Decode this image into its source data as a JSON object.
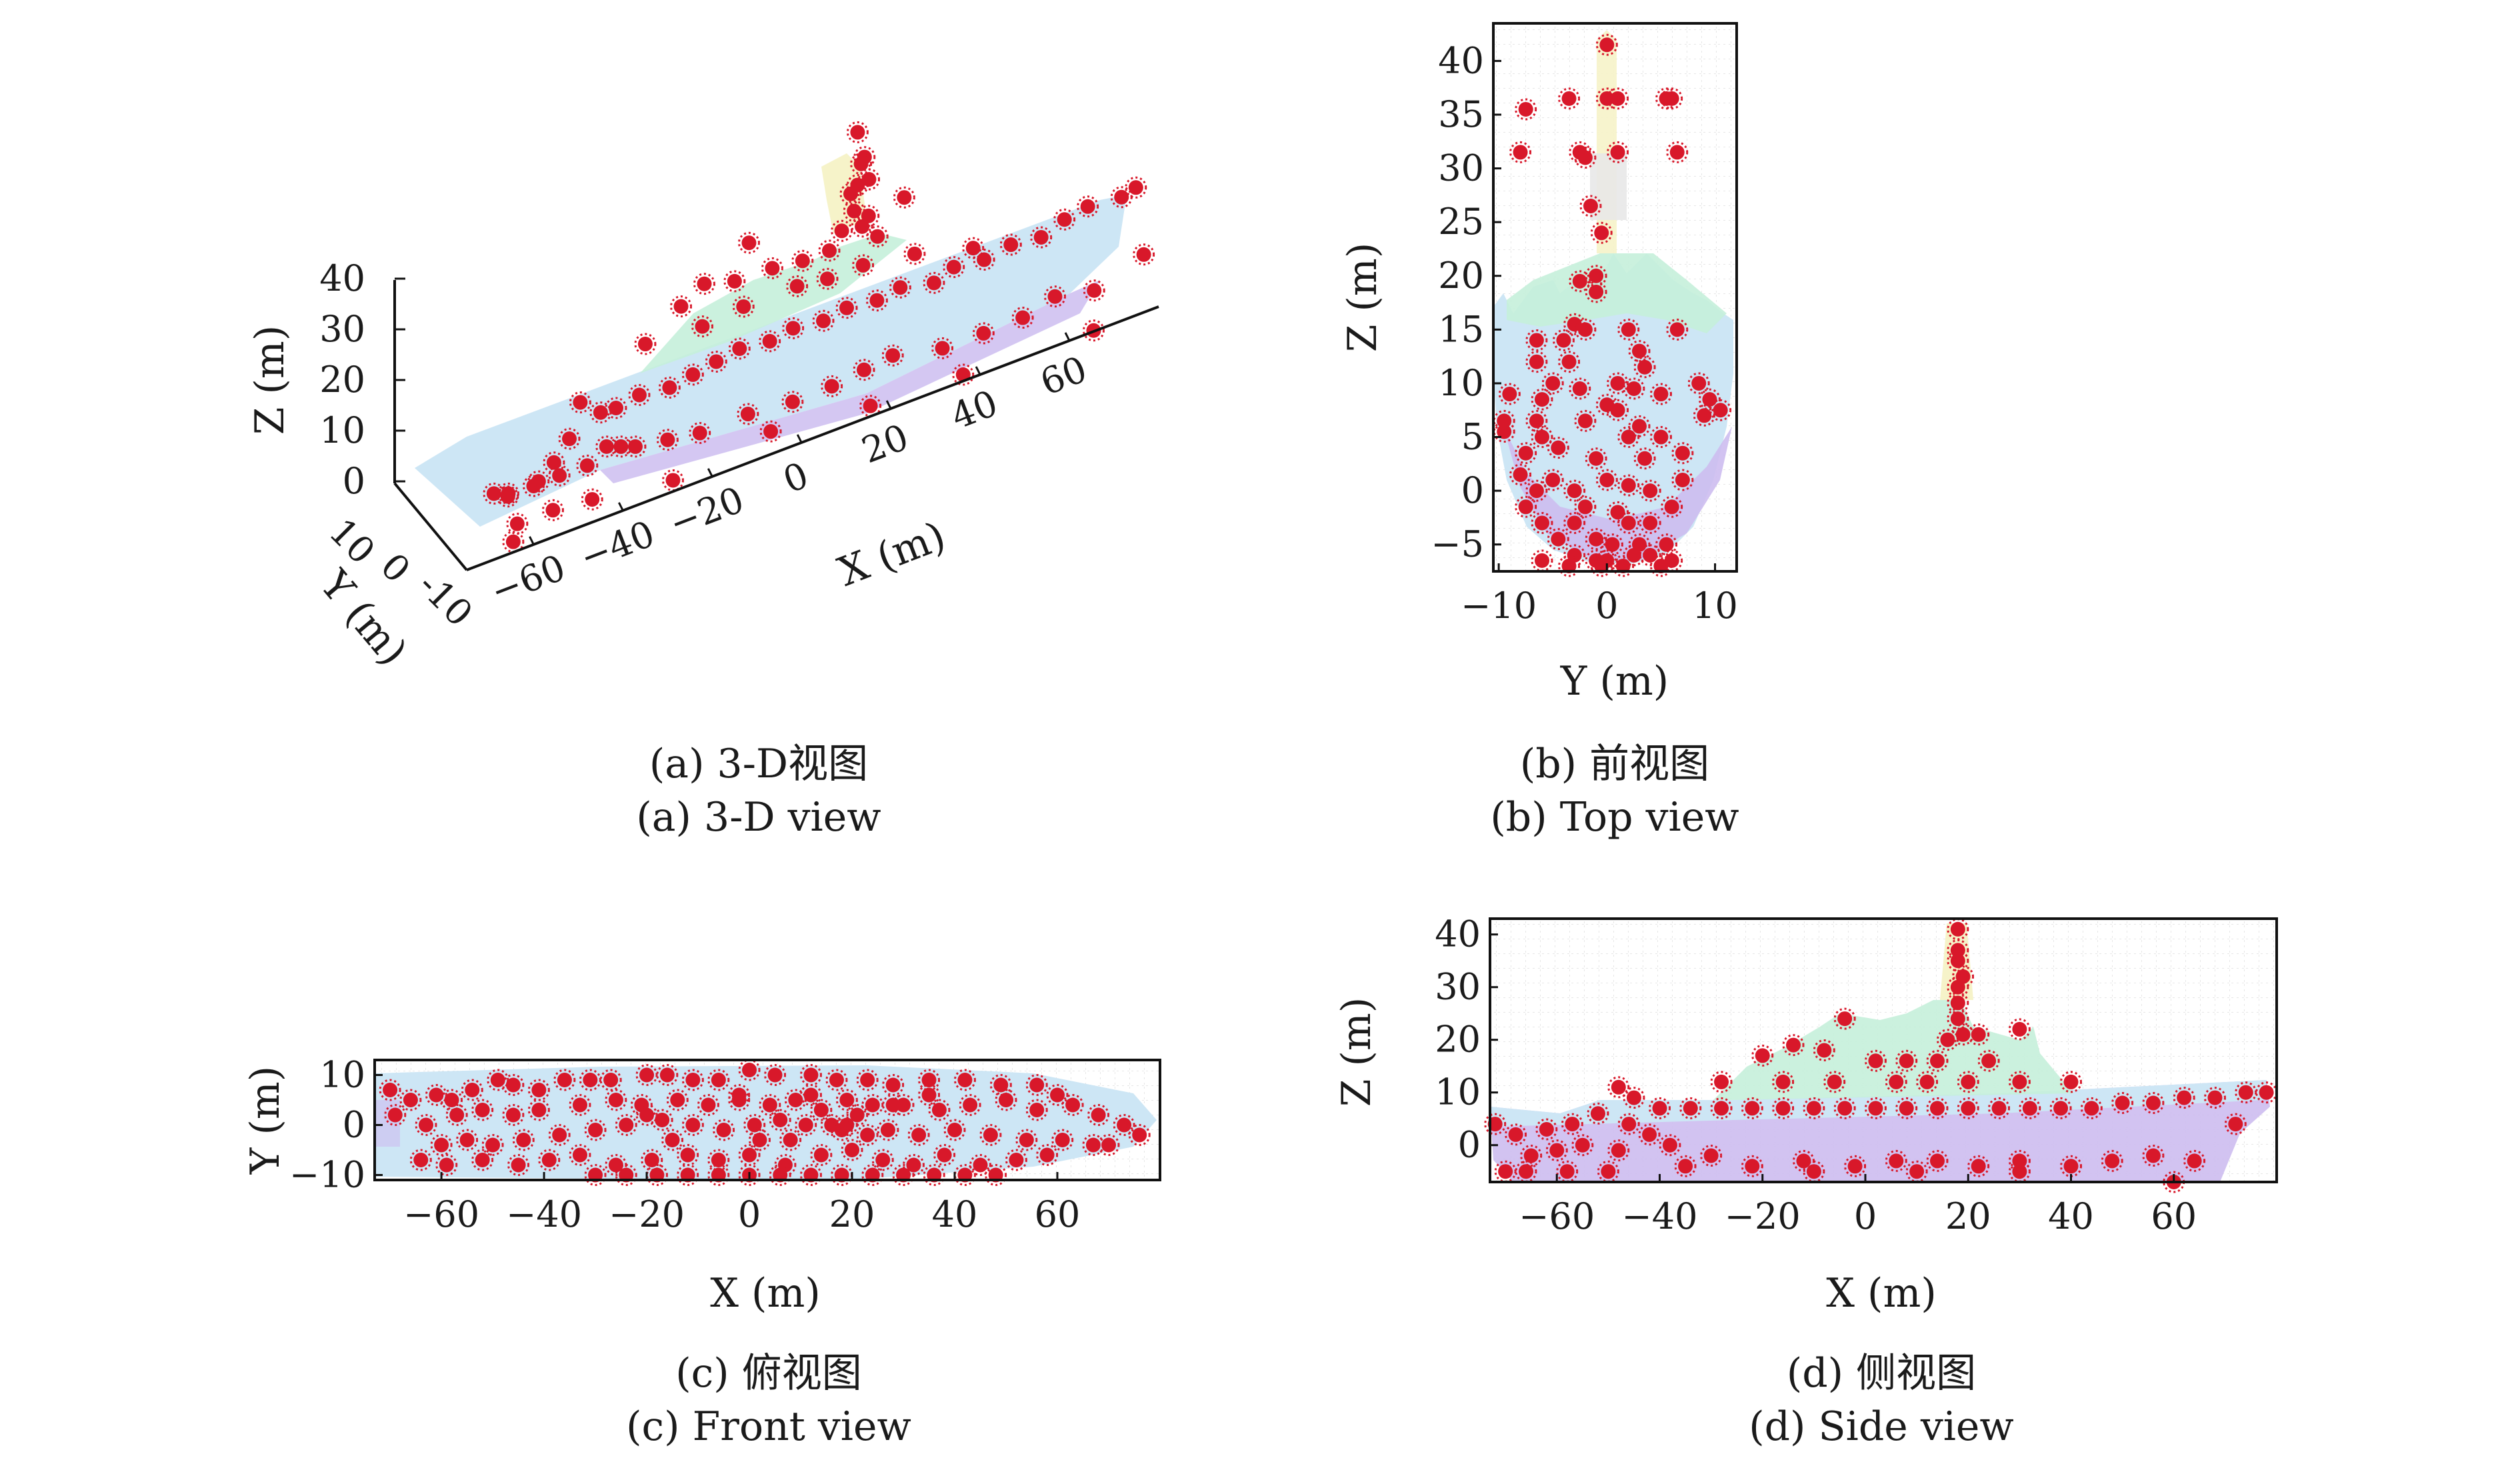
{
  "figure": {
    "captions": {
      "a_cn": "(a) 3-D视图",
      "a_en": "(a) 3-D view",
      "b_cn": "(b) 前视图",
      "b_en": "(b) Top view",
      "c_cn": "(c) 俯视图",
      "c_en": "(c) Front view",
      "d_cn": "(d) 侧视图",
      "d_en": "(d) Side view"
    },
    "colors": {
      "points": "#d8182a",
      "hull": "#bfe3f3",
      "hull_lower": "#cdbdf0",
      "superstructure": "#c5f0da",
      "mast": "#f6f3c9"
    }
  },
  "chart_data": [
    {
      "id": "a",
      "type": "scatter",
      "xlabel": "X (m)",
      "ylabel": "Y (m)",
      "zlabel": "Z (m)",
      "xticks": [
        "-60",
        "-40",
        "-20",
        "0",
        "20",
        "40",
        "60"
      ],
      "yticks": [
        "10",
        "0",
        "-10"
      ],
      "zticks": [
        "0",
        "10",
        "20",
        "30",
        "40"
      ],
      "xlim": [
        -75,
        80
      ],
      "ylim": [
        -12,
        12
      ],
      "zlim": [
        -6,
        42
      ]
    },
    {
      "id": "b",
      "type": "scatter",
      "xlabel": "Y (m)",
      "ylabel": "Z (m)",
      "xticks": [
        "-10",
        "0",
        "10"
      ],
      "yticks": [
        "-5",
        "0",
        "5",
        "10",
        "15",
        "20",
        "25",
        "30",
        "35",
        "40"
      ],
      "xlim": [
        -10.5,
        12
      ],
      "ylim": [
        -7.5,
        43.5
      ],
      "points": [
        [
          0,
          41.5
        ],
        [
          -3.5,
          36.5
        ],
        [
          -7.5,
          35.5
        ],
        [
          0,
          36.5
        ],
        [
          1,
          36.5
        ],
        [
          5.5,
          36.5
        ],
        [
          6,
          36.5
        ],
        [
          -8,
          31.5
        ],
        [
          -2.5,
          31.5
        ],
        [
          -2,
          31
        ],
        [
          1,
          31.5
        ],
        [
          6.5,
          31.5
        ],
        [
          -1.5,
          26.5
        ],
        [
          -0.5,
          24
        ],
        [
          -1,
          20
        ],
        [
          -2.5,
          19.5
        ],
        [
          -1,
          18.5
        ],
        [
          -3,
          15.5
        ],
        [
          -2,
          15
        ],
        [
          2,
          15
        ],
        [
          -4,
          14
        ],
        [
          -6.5,
          14
        ],
        [
          3,
          13
        ],
        [
          6.5,
          15
        ],
        [
          -3.5,
          12
        ],
        [
          -6.5,
          12
        ],
        [
          3.5,
          11.5
        ],
        [
          1,
          10
        ],
        [
          -5,
          10
        ],
        [
          -2.5,
          9.5
        ],
        [
          2.5,
          9.5
        ],
        [
          8.5,
          10
        ],
        [
          -9,
          9
        ],
        [
          -6,
          8.5
        ],
        [
          0,
          8
        ],
        [
          1,
          7.5
        ],
        [
          -2,
          6.5
        ],
        [
          5,
          9
        ],
        [
          9.5,
          8.5
        ],
        [
          -9.5,
          6.5
        ],
        [
          -6.5,
          6.5
        ],
        [
          3,
          6
        ],
        [
          9,
          7
        ],
        [
          10.5,
          7.5
        ],
        [
          -9.5,
          5.5
        ],
        [
          -6,
          5
        ],
        [
          -4.5,
          4
        ],
        [
          2,
          5
        ],
        [
          5,
          5
        ],
        [
          -7.5,
          3.5
        ],
        [
          -1,
          3
        ],
        [
          3.5,
          3
        ],
        [
          7,
          3.5
        ],
        [
          -8,
          1.5
        ],
        [
          -5,
          1
        ],
        [
          0,
          1
        ],
        [
          2,
          0.5
        ],
        [
          7,
          1
        ],
        [
          -6.5,
          0
        ],
        [
          -3,
          0
        ],
        [
          4,
          0
        ],
        [
          -7.5,
          -1.5
        ],
        [
          -2,
          -1.5
        ],
        [
          1,
          -2
        ],
        [
          6,
          -1.5
        ],
        [
          -6,
          -3
        ],
        [
          -3,
          -3
        ],
        [
          2,
          -3
        ],
        [
          4,
          -3
        ],
        [
          -4.5,
          -4.5
        ],
        [
          -1,
          -4.5
        ],
        [
          0.5,
          -5
        ],
        [
          3,
          -5
        ],
        [
          5.5,
          -5
        ],
        [
          -6,
          -6.5
        ],
        [
          -3,
          -6
        ],
        [
          -1,
          -6.5
        ],
        [
          0,
          -6.5
        ],
        [
          2.5,
          -6
        ],
        [
          4,
          -6
        ],
        [
          6,
          -6.5
        ],
        [
          -3.5,
          -7
        ],
        [
          -0.5,
          -7
        ],
        [
          1.5,
          -7
        ],
        [
          5,
          -7
        ]
      ]
    },
    {
      "id": "c",
      "type": "scatter",
      "xlabel": "X (m)",
      "ylabel": "Y (m)",
      "xticks": [
        "-60",
        "-40",
        "-20",
        "0",
        "20",
        "40",
        "60"
      ],
      "yticks": [
        "10",
        "0",
        "-10"
      ],
      "xlim": [
        -73,
        80
      ],
      "ylim": [
        -11,
        13
      ],
      "points": [
        [
          -70,
          7
        ],
        [
          -66,
          5
        ],
        [
          -61,
          6
        ],
        [
          -58,
          5
        ],
        [
          -54,
          7
        ],
        [
          -49,
          9
        ],
        [
          -46,
          8
        ],
        [
          -41,
          7
        ],
        [
          -36,
          9
        ],
        [
          -31,
          9
        ],
        [
          -27,
          9
        ],
        [
          -20,
          10
        ],
        [
          -16,
          10
        ],
        [
          -11,
          9
        ],
        [
          -6,
          9
        ],
        [
          0,
          11
        ],
        [
          5,
          10
        ],
        [
          12,
          10
        ],
        [
          17,
          9
        ],
        [
          23,
          9
        ],
        [
          28,
          8
        ],
        [
          35,
          9
        ],
        [
          42,
          9
        ],
        [
          49,
          8
        ],
        [
          56,
          8
        ],
        [
          60,
          6
        ],
        [
          -69,
          2
        ],
        [
          -63,
          0
        ],
        [
          -57,
          2
        ],
        [
          -52,
          3
        ],
        [
          -46,
          2
        ],
        [
          -41,
          3
        ],
        [
          -33,
          4
        ],
        [
          -26,
          5
        ],
        [
          -21,
          4
        ],
        [
          -14,
          5
        ],
        [
          -8,
          4
        ],
        [
          -2,
          5
        ],
        [
          4,
          4
        ],
        [
          9,
          5
        ],
        [
          14,
          3
        ],
        [
          19,
          5
        ],
        [
          24,
          4
        ],
        [
          30,
          4
        ],
        [
          37,
          3
        ],
        [
          43,
          4
        ],
        [
          50,
          5
        ],
        [
          56,
          3
        ],
        [
          63,
          4
        ],
        [
          68,
          2
        ],
        [
          73,
          0
        ],
        [
          76,
          -2
        ],
        [
          -60,
          -4
        ],
        [
          -55,
          -3
        ],
        [
          -50,
          -4
        ],
        [
          -44,
          -3
        ],
        [
          -37,
          -2
        ],
        [
          -30,
          -1
        ],
        [
          -24,
          0
        ],
        [
          -17,
          1
        ],
        [
          -11,
          0
        ],
        [
          -5,
          -1
        ],
        [
          1,
          0
        ],
        [
          6,
          1
        ],
        [
          11,
          0
        ],
        [
          16,
          0
        ],
        [
          18,
          -1
        ],
        [
          19,
          0
        ],
        [
          21,
          2
        ],
        [
          23,
          -2
        ],
        [
          27,
          -1
        ],
        [
          33,
          -2
        ],
        [
          40,
          -1
        ],
        [
          47,
          -2
        ],
        [
          54,
          -3
        ],
        [
          61,
          -3
        ],
        [
          67,
          -4
        ],
        [
          70,
          -4
        ],
        [
          -64,
          -7
        ],
        [
          -59,
          -8
        ],
        [
          -52,
          -7
        ],
        [
          -45,
          -8
        ],
        [
          -39,
          -7
        ],
        [
          -33,
          -6
        ],
        [
          -26,
          -8
        ],
        [
          -19,
          -7
        ],
        [
          -12,
          -6
        ],
        [
          -6,
          -7
        ],
        [
          0,
          -6
        ],
        [
          7,
          -8
        ],
        [
          14,
          -6
        ],
        [
          20,
          -5
        ],
        [
          26,
          -7
        ],
        [
          32,
          -8
        ],
        [
          38,
          -6
        ],
        [
          45,
          -8
        ],
        [
          52,
          -7
        ],
        [
          58,
          -6
        ],
        [
          -30,
          -10
        ],
        [
          -24,
          -10
        ],
        [
          -18,
          -10
        ],
        [
          -12,
          -10
        ],
        [
          -6,
          -10
        ],
        [
          0,
          -10
        ],
        [
          6,
          -10
        ],
        [
          12,
          -10
        ],
        [
          18,
          -10
        ],
        [
          24,
          -10
        ],
        [
          30,
          -10
        ],
        [
          36,
          -10
        ],
        [
          42,
          -10
        ],
        [
          48,
          -10
        ],
        [
          -2,
          6
        ],
        [
          2,
          -3
        ],
        [
          8,
          -3
        ],
        [
          12,
          6
        ],
        [
          -15,
          -3
        ],
        [
          -20,
          2
        ],
        [
          35,
          6
        ],
        [
          28,
          4
        ]
      ]
    },
    {
      "id": "d",
      "type": "scatter",
      "xlabel": "X (m)",
      "ylabel": "Z (m)",
      "xticks": [
        "-60",
        "-40",
        "-20",
        "0",
        "20",
        "40",
        "60"
      ],
      "yticks": [
        "0",
        "10",
        "20",
        "30",
        "40"
      ],
      "xlim": [
        -73,
        80
      ],
      "ylim": [
        -7,
        43
      ],
      "points": [
        [
          18,
          41
        ],
        [
          18,
          37
        ],
        [
          18,
          35
        ],
        [
          19,
          32
        ],
        [
          18,
          30
        ],
        [
          18,
          27
        ],
        [
          18,
          24
        ],
        [
          19,
          21
        ],
        [
          16,
          20
        ],
        [
          22,
          21
        ],
        [
          30,
          22
        ],
        [
          -4,
          24
        ],
        [
          -14,
          19
        ],
        [
          -20,
          17
        ],
        [
          -8,
          18
        ],
        [
          2,
          16
        ],
        [
          8,
          16
        ],
        [
          14,
          16
        ],
        [
          24,
          16
        ],
        [
          -28,
          12
        ],
        [
          -16,
          12
        ],
        [
          -6,
          12
        ],
        [
          6,
          12
        ],
        [
          12,
          12
        ],
        [
          20,
          12
        ],
        [
          30,
          12
        ],
        [
          40,
          12
        ],
        [
          -45,
          9
        ],
        [
          -40,
          7
        ],
        [
          -34,
          7
        ],
        [
          -28,
          7
        ],
        [
          -22,
          7
        ],
        [
          -16,
          7
        ],
        [
          -10,
          7
        ],
        [
          -4,
          7
        ],
        [
          2,
          7
        ],
        [
          8,
          7
        ],
        [
          14,
          7
        ],
        [
          20,
          7
        ],
        [
          26,
          7
        ],
        [
          32,
          7
        ],
        [
          38,
          7
        ],
        [
          44,
          7
        ],
        [
          50,
          8
        ],
        [
          56,
          8
        ],
        [
          62,
          9
        ],
        [
          68,
          9
        ],
        [
          74,
          10
        ],
        [
          78,
          10
        ],
        [
          -48,
          11
        ],
        [
          -52,
          6
        ],
        [
          -57,
          4
        ],
        [
          -62,
          3
        ],
        [
          -68,
          2
        ],
        [
          -72,
          4
        ],
        [
          -46,
          4
        ],
        [
          -42,
          2
        ],
        [
          -55,
          0
        ],
        [
          -60,
          -1
        ],
        [
          -65,
          -2
        ],
        [
          -48,
          -1
        ],
        [
          -38,
          0
        ],
        [
          -30,
          -2
        ],
        [
          -22,
          -4
        ],
        [
          -12,
          -3
        ],
        [
          -2,
          -4
        ],
        [
          6,
          -3
        ],
        [
          14,
          -3
        ],
        [
          22,
          -4
        ],
        [
          30,
          -3
        ],
        [
          40,
          -4
        ],
        [
          48,
          -3
        ],
        [
          56,
          -2
        ],
        [
          64,
          -3
        ],
        [
          -66,
          -5
        ],
        [
          -58,
          -5
        ],
        [
          -50,
          -5
        ],
        [
          -10,
          -5
        ],
        [
          10,
          -5
        ],
        [
          30,
          -5
        ],
        [
          60,
          -7
        ],
        [
          -35,
          -4
        ],
        [
          -70,
          -5
        ],
        [
          72,
          4
        ]
      ]
    }
  ]
}
